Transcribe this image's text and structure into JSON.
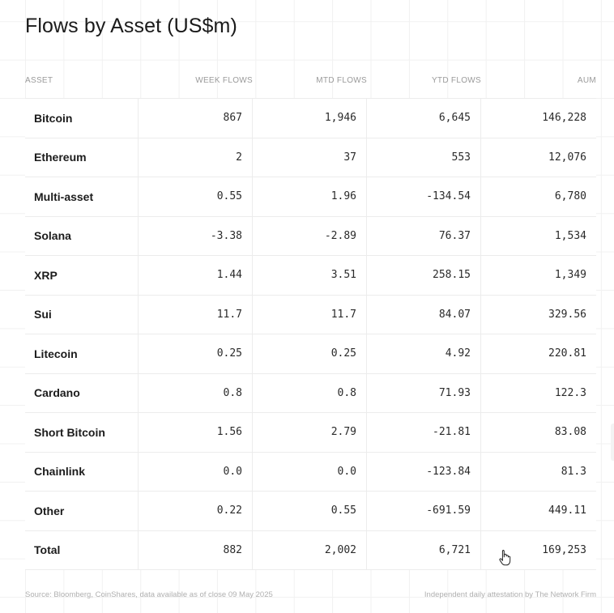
{
  "title": "Flows by Asset (US$m)",
  "columns": {
    "asset": "ASSET",
    "week": "WEEK FLOWS",
    "mtd": "MTD FLOWS",
    "ytd": "YTD FLOWS",
    "aum": "AUM"
  },
  "rows": [
    {
      "asset": "Bitcoin",
      "week": "867",
      "mtd": "1,946",
      "ytd": "6,645",
      "aum": "146,228"
    },
    {
      "asset": "Ethereum",
      "week": "2",
      "mtd": "37",
      "ytd": "553",
      "aum": "12,076"
    },
    {
      "asset": "Multi-asset",
      "week": "0.55",
      "mtd": "1.96",
      "ytd": "-134.54",
      "aum": "6,780"
    },
    {
      "asset": "Solana",
      "week": "-3.38",
      "mtd": "-2.89",
      "ytd": "76.37",
      "aum": "1,534"
    },
    {
      "asset": "XRP",
      "week": "1.44",
      "mtd": "3.51",
      "ytd": "258.15",
      "aum": "1,349"
    },
    {
      "asset": "Sui",
      "week": "11.7",
      "mtd": "11.7",
      "ytd": "84.07",
      "aum": "329.56"
    },
    {
      "asset": "Litecoin",
      "week": "0.25",
      "mtd": "0.25",
      "ytd": "4.92",
      "aum": "220.81"
    },
    {
      "asset": "Cardano",
      "week": "0.8",
      "mtd": "0.8",
      "ytd": "71.93",
      "aum": "122.3"
    },
    {
      "asset": "Short Bitcoin",
      "week": "1.56",
      "mtd": "2.79",
      "ytd": "-21.81",
      "aum": "83.08"
    },
    {
      "asset": "Chainlink",
      "week": "0.0",
      "mtd": "0.0",
      "ytd": "-123.84",
      "aum": "81.3"
    },
    {
      "asset": "Other",
      "week": "0.22",
      "mtd": "0.55",
      "ytd": "-691.59",
      "aum": "449.11"
    },
    {
      "asset": "Total",
      "week": "882",
      "mtd": "2,002",
      "ytd": "6,721",
      "aum": "169,253"
    }
  ],
  "footer": {
    "source": "Source: Bloomberg, CoinShares, data available as of close 09 May 2025",
    "attestation": "Independent daily attestation by The Network Firm"
  },
  "icons": {
    "cursor": "hand-pointer-icon"
  }
}
